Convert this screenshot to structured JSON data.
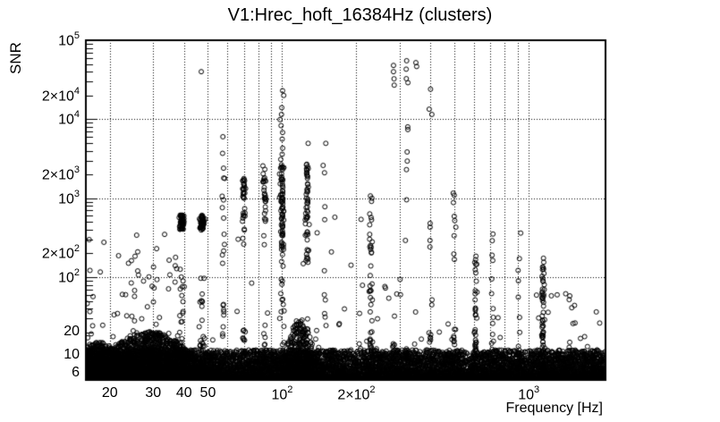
{
  "title": "V1:Hrec_hoft_16384Hz (clusters)",
  "axes": {
    "x": {
      "label": "Frequency [Hz]",
      "scale": "log",
      "min": 16,
      "max": 2048,
      "tick_labels": [
        {
          "v": 20,
          "t": "20"
        },
        {
          "v": 30,
          "t": "30"
        },
        {
          "v": 40,
          "t": "40"
        },
        {
          "v": 50,
          "t": "50"
        },
        {
          "v": 100,
          "t": "10^2"
        },
        {
          "v": 200,
          "t": "2×10^2"
        },
        {
          "v": 1000,
          "t": "10^3"
        }
      ],
      "grid": [
        20,
        30,
        40,
        50,
        60,
        70,
        80,
        90,
        100,
        200,
        300,
        400,
        500,
        600,
        700,
        800,
        900,
        1000
      ]
    },
    "y": {
      "label": "SNR",
      "scale": "log",
      "min": 5,
      "max": 100000,
      "tick_labels": [
        {
          "v": 6,
          "t": "6"
        },
        {
          "v": 10,
          "t": "10"
        },
        {
          "v": 20,
          "t": "20"
        },
        {
          "v": 100,
          "t": "10^2"
        },
        {
          "v": 200,
          "t": "2×10^2"
        },
        {
          "v": 1000,
          "t": "10^3"
        },
        {
          "v": 2000,
          "t": "2×10^3"
        },
        {
          "v": 10000,
          "t": "10^4"
        },
        {
          "v": 20000,
          "t": "2×10^4"
        },
        {
          "v": 100000,
          "t": "10^5"
        }
      ],
      "grid": [
        10,
        100,
        1000,
        10000
      ]
    }
  },
  "chart_data": {
    "type": "scatter",
    "title": "V1:Hrec_hoft_16384Hz (clusters)",
    "xlabel": "Frequency [Hz]",
    "ylabel": "SNR",
    "xscale": "log",
    "yscale": "log",
    "xlim": [
      16,
      2048
    ],
    "ylim": [
      5,
      100000
    ],
    "grid": "dotted",
    "marker": {
      "shape": "open-circle",
      "radius": 2.5,
      "color": "#000000"
    },
    "background": [
      {
        "kind": "floor",
        "n": 9500,
        "fmin": 16,
        "fmax": 2048,
        "base": 5,
        "a": 0.38,
        "p": 2.2
      },
      {
        "kind": "hill",
        "n": 2600,
        "fc": 29,
        "sig": 0.16,
        "fmin": 16,
        "fmax": 62,
        "base": 5,
        "a": 0.62,
        "p": 2.2
      },
      {
        "kind": "hill",
        "n": 900,
        "fc": 18,
        "sig": 0.1,
        "fmin": 16,
        "fmax": 25,
        "base": 5,
        "a": 0.48,
        "p": 2.0
      },
      {
        "kind": "hill",
        "n": 700,
        "fc": 118,
        "sig": 0.05,
        "fmin": 100,
        "fmax": 142,
        "base": 5,
        "a": 0.78,
        "p": 2.5
      },
      {
        "kind": "scatter",
        "n": 90,
        "fmin": 16,
        "fmax": 38,
        "lo": 9,
        "hi": 350,
        "p": 2.2
      },
      {
        "kind": "scatter",
        "n": 45,
        "fmin": 40,
        "fmax": 2000,
        "lo": 8,
        "hi": 70,
        "p": 2.0
      },
      {
        "kind": "scatter",
        "n": 14,
        "fmin": 55,
        "fmax": 330,
        "lo": 60,
        "hi": 660,
        "p": 1.6
      },
      {
        "kind": "scatter",
        "n": 25,
        "fmin": 160,
        "fmax": 520,
        "lo": 10,
        "hi": 120,
        "p": 1.8
      },
      {
        "kind": "scatter",
        "n": 18,
        "fmin": 1050,
        "fmax": 2048,
        "lo": 6,
        "hi": 60,
        "p": 2.0
      }
    ],
    "lines": [
      {
        "f": 39.2,
        "width": 0.005,
        "clusters": [
          {
            "n": 60,
            "lo": 400,
            "hi": 620
          },
          {
            "n": 16,
            "lo": 9,
            "hi": 170
          },
          {
            "n": 30,
            "lo": 5,
            "hi": 15
          }
        ]
      },
      {
        "f": 47.3,
        "width": 0.005,
        "clusters": [
          {
            "values": [
              40000
            ]
          },
          {
            "n": 60,
            "lo": 390,
            "hi": 610
          },
          {
            "n": 14,
            "lo": 8,
            "hi": 130
          },
          {
            "n": 30,
            "lo": 5,
            "hi": 15
          }
        ]
      },
      {
        "f": 57.7,
        "width": 0.003,
        "clusters": [
          {
            "values": [
              6000,
              3700,
              2400,
              1800,
              1780,
              1060,
              950,
              760,
              560,
              350,
              260,
              215,
              150
            ]
          },
          {
            "n": 14,
            "lo": 5,
            "hi": 60
          }
        ]
      },
      {
        "f": 70,
        "width": 0.004,
        "clusters": [
          {
            "n": 32,
            "lo": 390,
            "hi": 2000
          },
          {
            "values": [
              310,
              262
            ]
          },
          {
            "n": 14,
            "lo": 5,
            "hi": 22
          }
        ]
      },
      {
        "f": 85.2,
        "width": 0.004,
        "clusters": [
          {
            "n": 28,
            "lo": 505,
            "hi": 2600
          },
          {
            "values": [
              335,
              258
            ]
          },
          {
            "n": 12,
            "lo": 5,
            "hi": 25
          }
        ]
      },
      {
        "f": 100,
        "width": 0.004,
        "clusters": [
          {
            "n": 70,
            "lo": 235,
            "hi": 2650
          },
          {
            "values": [
              23000,
              20000,
              14000,
              11500,
              9900,
              8300,
              6800,
              5600,
              4300,
              3600,
              3100
            ]
          },
          {
            "n": 22,
            "lo": 5,
            "hi": 235
          }
        ]
      },
      {
        "f": 126.5,
        "width": 0.004,
        "clusters": [
          {
            "n": 45,
            "lo": 310,
            "hi": 2750
          },
          {
            "values": [
              4950
            ]
          },
          {
            "n": 10,
            "lo": 120,
            "hi": 310
          },
          {
            "n": 16,
            "lo": 5,
            "hi": 30
          }
        ]
      },
      {
        "f": 149,
        "width": 0.003,
        "clusters": [
          {
            "values": [
              4950,
              2600,
              2100,
              780,
              535
            ]
          },
          {
            "n": 9,
            "lo": 6,
            "hi": 60
          }
        ]
      },
      {
        "f": 229,
        "width": 0.003,
        "clusters": [
          {
            "n": 26,
            "lo": 25,
            "hi": 1190
          },
          {
            "n": 12,
            "lo": 5,
            "hi": 25
          }
        ]
      },
      {
        "f": 282,
        "width": 0.003,
        "clusters": [
          {
            "values": [
              48000,
              40000,
              32500,
              27000
            ]
          },
          {
            "n": 8,
            "lo": 5,
            "hi": 16
          }
        ]
      },
      {
        "f": 320,
        "width": 0.003,
        "clusters": [
          {
            "values": [
              55000,
              43000,
              32600,
              29000,
              8000,
              7400,
              3850,
              2950,
              2300,
              955,
              292
            ]
          },
          {
            "n": 8,
            "lo": 5,
            "hi": 16
          }
        ]
      },
      {
        "f": 352,
        "width": 0.003,
        "clusters": [
          {
            "values": [
              52000,
              46500
            ]
          },
          {
            "n": 5,
            "lo": 5,
            "hi": 12
          }
        ]
      },
      {
        "f": 399,
        "width": 0.003,
        "clusters": [
          {
            "values": [
              24000,
              13400,
              11500,
              480,
              430,
              292,
              242
            ]
          },
          {
            "n": 10,
            "lo": 5,
            "hi": 20
          }
        ]
      },
      {
        "f": 498,
        "width": 0.003,
        "clusters": [
          {
            "values": [
              1160,
              1090,
              880,
              590,
              520,
              430,
              335,
              197,
              168
            ]
          },
          {
            "n": 10,
            "lo": 5,
            "hi": 22
          }
        ]
      },
      {
        "f": 608,
        "width": 0.003,
        "clusters": [
          {
            "n": 20,
            "lo": 20,
            "hi": 195
          },
          {
            "n": 18,
            "lo": 5,
            "hi": 20
          }
        ]
      },
      {
        "f": 712,
        "width": 0.003,
        "clusters": [
          {
            "values": [
              352,
              290,
              190,
              163,
              95,
              62,
              40,
              26
            ]
          },
          {
            "n": 10,
            "lo": 5,
            "hi": 20
          }
        ]
      },
      {
        "f": 915,
        "width": 0.003,
        "clusters": [
          {
            "values": [
              362,
              172,
              122,
              90,
              56,
              31,
              20,
              12
            ]
          },
          {
            "n": 8,
            "lo": 5,
            "hi": 15
          }
        ]
      },
      {
        "f": 1140,
        "width": 0.003,
        "clusters": [
          {
            "n": 50,
            "lo": 10,
            "hi": 180
          },
          {
            "n": 16,
            "lo": 5,
            "hi": 10
          }
        ]
      },
      {
        "f": 1460,
        "width": 0.003,
        "clusters": [
          {
            "values": [
              58,
              52,
              15
            ]
          },
          {
            "n": 5,
            "lo": 5,
            "hi": 10
          }
        ]
      }
    ]
  }
}
